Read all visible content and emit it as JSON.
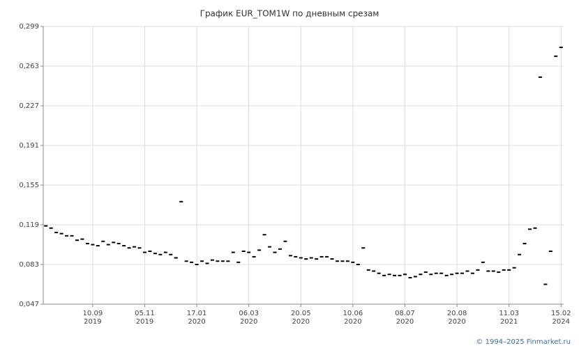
{
  "chart_data": {
    "type": "scatter",
    "title": "График EUR_TOM1W по дневным срезам",
    "categories": [
      null,
      null,
      null,
      null,
      null,
      null,
      null,
      null,
      null,
      "10.09",
      null,
      null,
      null,
      null,
      null,
      null,
      null,
      null,
      null,
      "05.11",
      null,
      null,
      null,
      null,
      null,
      null,
      null,
      null,
      null,
      "17.01",
      null,
      null,
      null,
      null,
      null,
      null,
      null,
      null,
      null,
      "06.03",
      null,
      null,
      null,
      null,
      null,
      null,
      null,
      null,
      null,
      "20.05",
      null,
      null,
      null,
      null,
      null,
      null,
      null,
      null,
      null,
      "10.06",
      null,
      null,
      null,
      null,
      null,
      null,
      null,
      null,
      null,
      "08.07",
      null,
      null,
      null,
      null,
      null,
      null,
      null,
      null,
      null,
      "20.08",
      null,
      null,
      null,
      null,
      null,
      null,
      null,
      null,
      null,
      "11.03",
      null,
      null,
      null,
      null,
      null,
      null,
      null,
      null,
      null,
      "15.02"
    ],
    "category_years": [
      null,
      null,
      null,
      null,
      null,
      null,
      null,
      null,
      null,
      "2019",
      null,
      null,
      null,
      null,
      null,
      null,
      null,
      null,
      null,
      "2019",
      null,
      null,
      null,
      null,
      null,
      null,
      null,
      null,
      null,
      "2020",
      null,
      null,
      null,
      null,
      null,
      null,
      null,
      null,
      null,
      "2020",
      null,
      null,
      null,
      null,
      null,
      null,
      null,
      null,
      null,
      "2020",
      null,
      null,
      null,
      null,
      null,
      null,
      null,
      null,
      null,
      "2020",
      null,
      null,
      null,
      null,
      null,
      null,
      null,
      null,
      null,
      "2020",
      null,
      null,
      null,
      null,
      null,
      null,
      null,
      null,
      null,
      "2020",
      null,
      null,
      null,
      null,
      null,
      null,
      null,
      null,
      null,
      "2021",
      null,
      null,
      null,
      null,
      null,
      null,
      null,
      null,
      null,
      "2024"
    ],
    "values": [
      0.118,
      0.116,
      0.112,
      0.111,
      0.109,
      0.109,
      0.105,
      0.106,
      0.102,
      0.101,
      0.1,
      0.104,
      0.101,
      0.103,
      0.102,
      0.1,
      0.098,
      0.099,
      0.098,
      0.094,
      0.095,
      0.093,
      0.092,
      0.094,
      0.092,
      0.089,
      0.14,
      0.086,
      0.085,
      0.083,
      0.086,
      0.084,
      0.087,
      0.086,
      0.086,
      0.086,
      0.094,
      0.085,
      0.095,
      0.094,
      0.09,
      0.096,
      0.11,
      0.099,
      0.094,
      0.097,
      0.104,
      0.091,
      0.09,
      0.089,
      0.088,
      0.089,
      0.088,
      0.09,
      0.09,
      0.088,
      0.086,
      0.086,
      0.086,
      0.085,
      0.083,
      0.098,
      0.078,
      0.077,
      0.075,
      0.073,
      0.074,
      0.073,
      0.073,
      0.074,
      0.071,
      0.072,
      0.074,
      0.076,
      0.074,
      0.075,
      0.075,
      0.073,
      0.074,
      0.075,
      0.075,
      0.077,
      0.075,
      0.078,
      0.085,
      0.077,
      0.077,
      0.076,
      0.078,
      0.078,
      0.08,
      0.092,
      0.102,
      0.115,
      0.116,
      0.253,
      0.065,
      0.095,
      0.272,
      0.28
    ],
    "color": "#000000",
    "ylim": [
      0.047,
      0.299
    ],
    "yticks": [
      {
        "value": 0.047,
        "label": "0,047"
      },
      {
        "value": 0.083,
        "label": "0,083"
      },
      {
        "value": 0.119,
        "label": "0,119"
      },
      {
        "value": 0.155,
        "label": "0,155"
      },
      {
        "value": 0.191,
        "label": "0,191"
      },
      {
        "value": 0.227,
        "label": "0,227"
      },
      {
        "value": 0.263,
        "label": "0,263"
      },
      {
        "value": 0.299,
        "label": "0,299"
      }
    ],
    "grid": true,
    "footer": "© 1994–2025 Finmarket.ru"
  }
}
